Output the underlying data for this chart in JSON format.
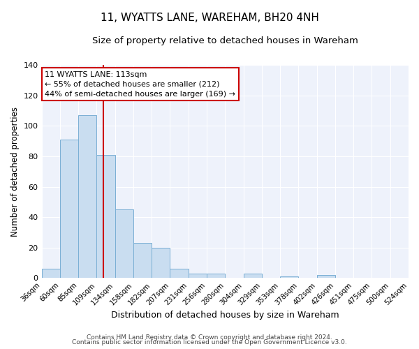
{
  "title": "11, WYATTS LANE, WAREHAM, BH20 4NH",
  "subtitle": "Size of property relative to detached houses in Wareham",
  "xlabel": "Distribution of detached houses by size in Wareham",
  "ylabel": "Number of detached properties",
  "bar_values": [
    6,
    91,
    107,
    81,
    45,
    23,
    20,
    6,
    3,
    3,
    0,
    3,
    0,
    1,
    0,
    2,
    0,
    0,
    0,
    0
  ],
  "bin_labels": [
    "36sqm",
    "60sqm",
    "85sqm",
    "109sqm",
    "134sqm",
    "158sqm",
    "182sqm",
    "207sqm",
    "231sqm",
    "256sqm",
    "280sqm",
    "304sqm",
    "329sqm",
    "353sqm",
    "378sqm",
    "402sqm",
    "426sqm",
    "451sqm",
    "475sqm",
    "500sqm",
    "524sqm"
  ],
  "bar_color": "#c9ddf0",
  "bar_edge_color": "#7aafd4",
  "vline_color": "#cc0000",
  "vline_pos": 3.35,
  "annotation_title": "11 WYATTS LANE: 113sqm",
  "annotation_line1": "← 55% of detached houses are smaller (212)",
  "annotation_line2": "44% of semi-detached houses are larger (169) →",
  "annotation_box_color": "#cc0000",
  "ylim": [
    0,
    140
  ],
  "yticks": [
    0,
    20,
    40,
    60,
    80,
    100,
    120,
    140
  ],
  "footer1": "Contains HM Land Registry data © Crown copyright and database right 2024.",
  "footer2": "Contains public sector information licensed under the Open Government Licence v3.0.",
  "bg_color": "#eef2fb",
  "grid_color": "#ffffff"
}
